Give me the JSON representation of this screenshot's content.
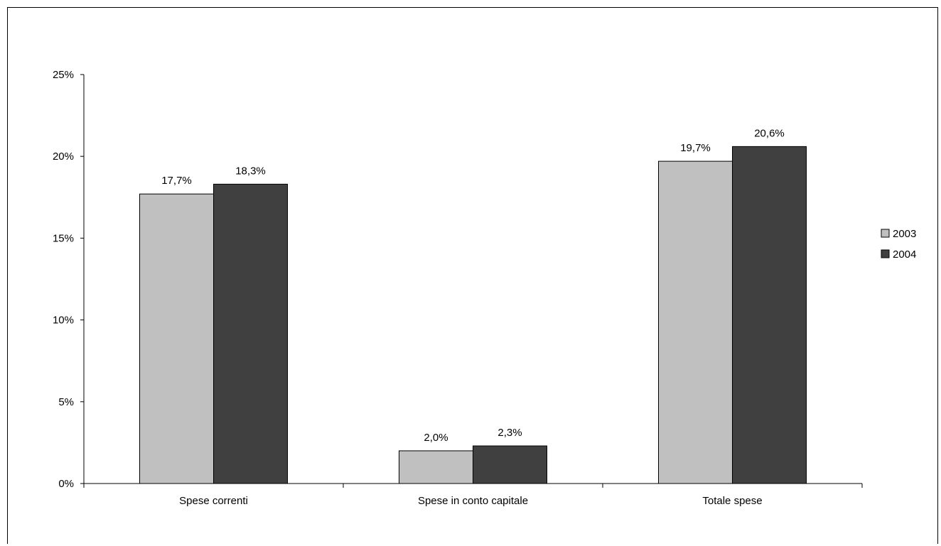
{
  "chart_data": {
    "type": "bar",
    "categories": [
      "Spese correnti",
      "Spese in conto capitale",
      "Totale spese"
    ],
    "series": [
      {
        "name": "2003",
        "values": [
          17.7,
          2.0,
          19.7
        ],
        "labels": [
          "17,7%",
          "2,0%",
          "19,7%"
        ],
        "color": "#c0c0c0"
      },
      {
        "name": "2004",
        "values": [
          18.3,
          2.3,
          20.6
        ],
        "labels": [
          "18,3%",
          "2,3%",
          "20,6%"
        ],
        "color": "#404040"
      }
    ],
    "yticks": [
      {
        "value": 0,
        "label": "0%"
      },
      {
        "value": 5,
        "label": "5%"
      },
      {
        "value": 10,
        "label": "10%"
      },
      {
        "value": 15,
        "label": "15%"
      },
      {
        "value": 20,
        "label": "20%"
      },
      {
        "value": 25,
        "label": "25%"
      }
    ],
    "ylim": [
      0,
      25
    ],
    "grid": false,
    "legend_position": "right",
    "title": "",
    "xlabel": "",
    "ylabel": ""
  }
}
